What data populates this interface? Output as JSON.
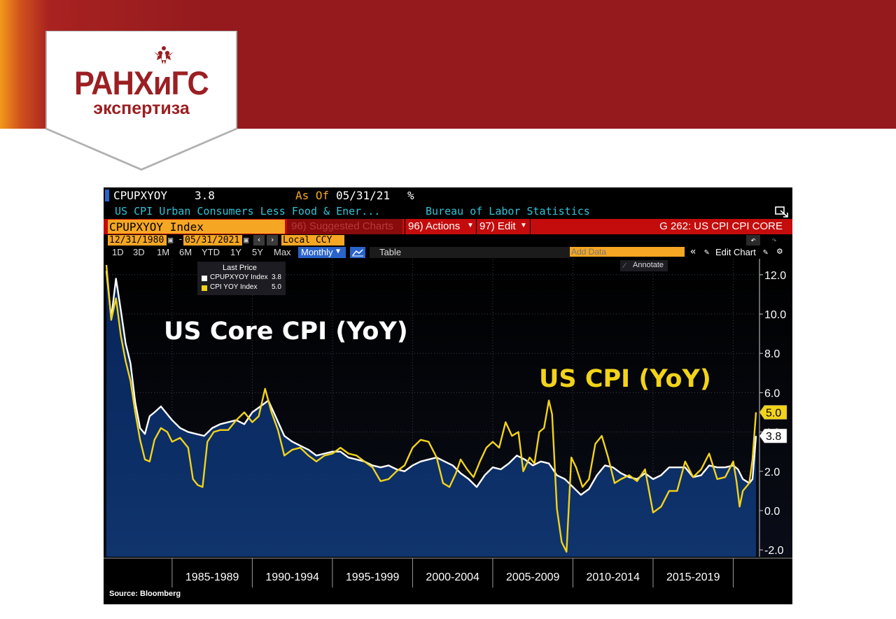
{
  "logo": {
    "name": "РАНХиГС",
    "subtitle": "экспертиза"
  },
  "terminal": {
    "ticker": "CPUPXYOY",
    "last_value": "3.8",
    "as_of_label": "As Of",
    "as_of_date": "05/31/21",
    "unit_symbol": "%",
    "description": "US CPI Urban Consumers Less Food & Ener...",
    "source_agency": "Bureau of Labor Statistics",
    "security_field": "CPUPXYOY Index",
    "suggested_charts": "96) Suggested Charts",
    "actions_label": "96) Actions",
    "edit_label": "97) Edit",
    "chart_id": "G 262: US CPI CPI CORE",
    "start_date": "12/31/1980",
    "end_date": "05/31/2021",
    "currency": "Local CCY",
    "periods": [
      "1D",
      "3D",
      "1M",
      "6M",
      "YTD",
      "1Y",
      "5Y",
      "Max"
    ],
    "frequency": "Monthly",
    "table_label": "Table",
    "add_data_placeholder": "Add Data",
    "edit_chart_label": "Edit Chart",
    "annotate_label": "Annotate",
    "source_note": "Source:  Bloomberg",
    "colors": {
      "amber": "#f5a623",
      "cyan": "#33c3d6",
      "red_bar": "#c40c0c",
      "monthly_btn": "#2a63c9"
    }
  },
  "chart_data": {
    "type": "area",
    "legend_title": "Last Price",
    "legend_position": "top-left",
    "x_range": [
      1980.9,
      2021.42
    ],
    "ylim": [
      -2.5,
      12.5
    ],
    "yticks": [
      12.0,
      10.0,
      8.0,
      6.0,
      4.0,
      2.0,
      0.0,
      -2.0
    ],
    "x_period_labels": [
      "1985-1989",
      "1990-1994",
      "1995-1999",
      "2000-2004",
      "2005-2009",
      "2010-2014",
      "2015-2019"
    ],
    "x_period_separators": [
      1985,
      1990,
      1995,
      2000,
      2005,
      2010,
      2015,
      2020
    ],
    "annotations": [
      "US Core CPI (YoY)",
      "US CPI (YoY)"
    ],
    "series": [
      {
        "name": "CPUPXYOY Index",
        "legend_value": "3.8",
        "color": "#ffffff",
        "style": "line-with-navy-fill",
        "x": [
          1980.9,
          1981.2,
          1981.5,
          1981.8,
          1982.1,
          1982.4,
          1982.7,
          1983.0,
          1983.3,
          1983.6,
          1983.9,
          1984.3,
          1984.7,
          1985.0,
          1985.5,
          1986.0,
          1986.5,
          1987.0,
          1987.5,
          1988.0,
          1988.5,
          1989.0,
          1989.5,
          1990.0,
          1990.5,
          1991.0,
          1991.5,
          1992.0,
          1992.5,
          1993.0,
          1993.5,
          1994.0,
          1994.5,
          1995.0,
          1995.5,
          1996.0,
          1996.5,
          1997.0,
          1997.5,
          1998.0,
          1998.5,
          1999.0,
          1999.5,
          2000.0,
          2000.5,
          2001.0,
          2001.5,
          2002.0,
          2002.5,
          2003.0,
          2003.5,
          2004.0,
          2004.5,
          2005.0,
          2005.5,
          2006.0,
          2006.5,
          2007.0,
          2007.5,
          2008.0,
          2008.5,
          2009.0,
          2009.5,
          2010.0,
          2010.5,
          2011.0,
          2011.5,
          2012.0,
          2012.5,
          2013.0,
          2013.5,
          2014.0,
          2014.5,
          2015.0,
          2015.5,
          2016.0,
          2016.5,
          2017.0,
          2017.5,
          2018.0,
          2018.5,
          2019.0,
          2019.5,
          2020.0,
          2020.3,
          2020.6,
          2021.0,
          2021.2,
          2021.42
        ],
        "values": [
          12.2,
          9.8,
          11.8,
          10.2,
          8.5,
          7.5,
          5.5,
          4.2,
          3.9,
          4.8,
          5.0,
          5.3,
          4.9,
          4.6,
          4.2,
          4.0,
          3.9,
          3.8,
          4.2,
          4.4,
          4.5,
          4.6,
          4.4,
          5.0,
          5.3,
          5.6,
          4.7,
          3.8,
          3.5,
          3.3,
          3.1,
          2.8,
          2.9,
          3.0,
          3.0,
          2.7,
          2.6,
          2.5,
          2.3,
          2.2,
          2.3,
          2.1,
          2.0,
          2.3,
          2.5,
          2.6,
          2.7,
          2.5,
          2.3,
          1.9,
          1.6,
          1.2,
          1.8,
          2.2,
          2.1,
          2.4,
          2.8,
          2.6,
          2.3,
          2.5,
          2.4,
          1.8,
          1.6,
          1.2,
          0.8,
          1.1,
          1.8,
          2.3,
          2.2,
          1.9,
          1.7,
          1.6,
          1.9,
          1.6,
          1.8,
          2.2,
          2.2,
          2.2,
          1.7,
          1.8,
          2.3,
          2.2,
          2.2,
          2.3,
          2.1,
          1.6,
          1.4,
          1.6,
          3.8
        ]
      },
      {
        "name": "CPI YOY Index",
        "legend_value": "5.0",
        "color": "#f2d31a",
        "style": "line",
        "x": [
          1980.9,
          1981.2,
          1981.5,
          1981.8,
          1982.1,
          1982.4,
          1982.7,
          1983.0,
          1983.3,
          1983.6,
          1983.9,
          1984.3,
          1984.7,
          1985.0,
          1985.5,
          1986.0,
          1986.3,
          1986.6,
          1986.9,
          1987.2,
          1987.6,
          1988.0,
          1988.5,
          1989.0,
          1989.5,
          1990.0,
          1990.4,
          1990.8,
          1991.2,
          1991.6,
          1992.0,
          1992.5,
          1993.0,
          1993.5,
          1994.0,
          1994.5,
          1995.0,
          1995.5,
          1996.0,
          1996.5,
          1997.0,
          1997.5,
          1998.0,
          1998.5,
          1999.0,
          1999.5,
          2000.0,
          2000.5,
          2001.0,
          2001.5,
          2001.9,
          2002.3,
          2002.7,
          2003.0,
          2003.4,
          2003.8,
          2004.2,
          2004.6,
          2005.0,
          2005.4,
          2005.8,
          2006.2,
          2006.6,
          2006.9,
          2007.3,
          2007.6,
          2007.9,
          2008.2,
          2008.5,
          2008.7,
          2009.0,
          2009.3,
          2009.6,
          2009.9,
          2010.2,
          2010.6,
          2011.0,
          2011.4,
          2011.8,
          2012.2,
          2012.6,
          2013.0,
          2013.5,
          2014.0,
          2014.5,
          2015.0,
          2015.5,
          2016.0,
          2016.5,
          2017.0,
          2017.5,
          2018.0,
          2018.5,
          2019.0,
          2019.5,
          2020.0,
          2020.2,
          2020.4,
          2020.6,
          2021.0,
          2021.2,
          2021.42
        ],
        "values": [
          12.5,
          9.7,
          10.8,
          8.9,
          7.6,
          6.6,
          5.0,
          3.6,
          2.6,
          2.5,
          3.6,
          4.2,
          4.0,
          3.5,
          3.7,
          3.2,
          1.6,
          1.3,
          1.2,
          3.5,
          4.0,
          4.1,
          4.1,
          4.6,
          5.0,
          4.5,
          4.8,
          6.2,
          5.0,
          4.1,
          2.8,
          3.1,
          3.2,
          2.8,
          2.5,
          2.8,
          2.9,
          3.2,
          2.9,
          2.8,
          2.5,
          2.2,
          1.5,
          1.6,
          2.0,
          2.3,
          3.2,
          3.6,
          3.5,
          2.7,
          1.4,
          1.2,
          1.9,
          2.6,
          2.1,
          1.7,
          2.5,
          3.2,
          3.5,
          3.2,
          4.5,
          3.8,
          4.0,
          2.0,
          2.7,
          2.4,
          4.0,
          4.2,
          5.6,
          4.9,
          0.1,
          -1.6,
          -2.1,
          2.7,
          2.2,
          1.2,
          1.6,
          3.4,
          3.8,
          2.7,
          1.4,
          1.6,
          1.8,
          1.5,
          2.1,
          -0.1,
          0.2,
          1.0,
          1.0,
          2.5,
          1.7,
          2.1,
          2.9,
          1.6,
          1.7,
          2.5,
          1.5,
          0.2,
          1.0,
          1.4,
          2.6,
          5.0
        ]
      }
    ]
  }
}
